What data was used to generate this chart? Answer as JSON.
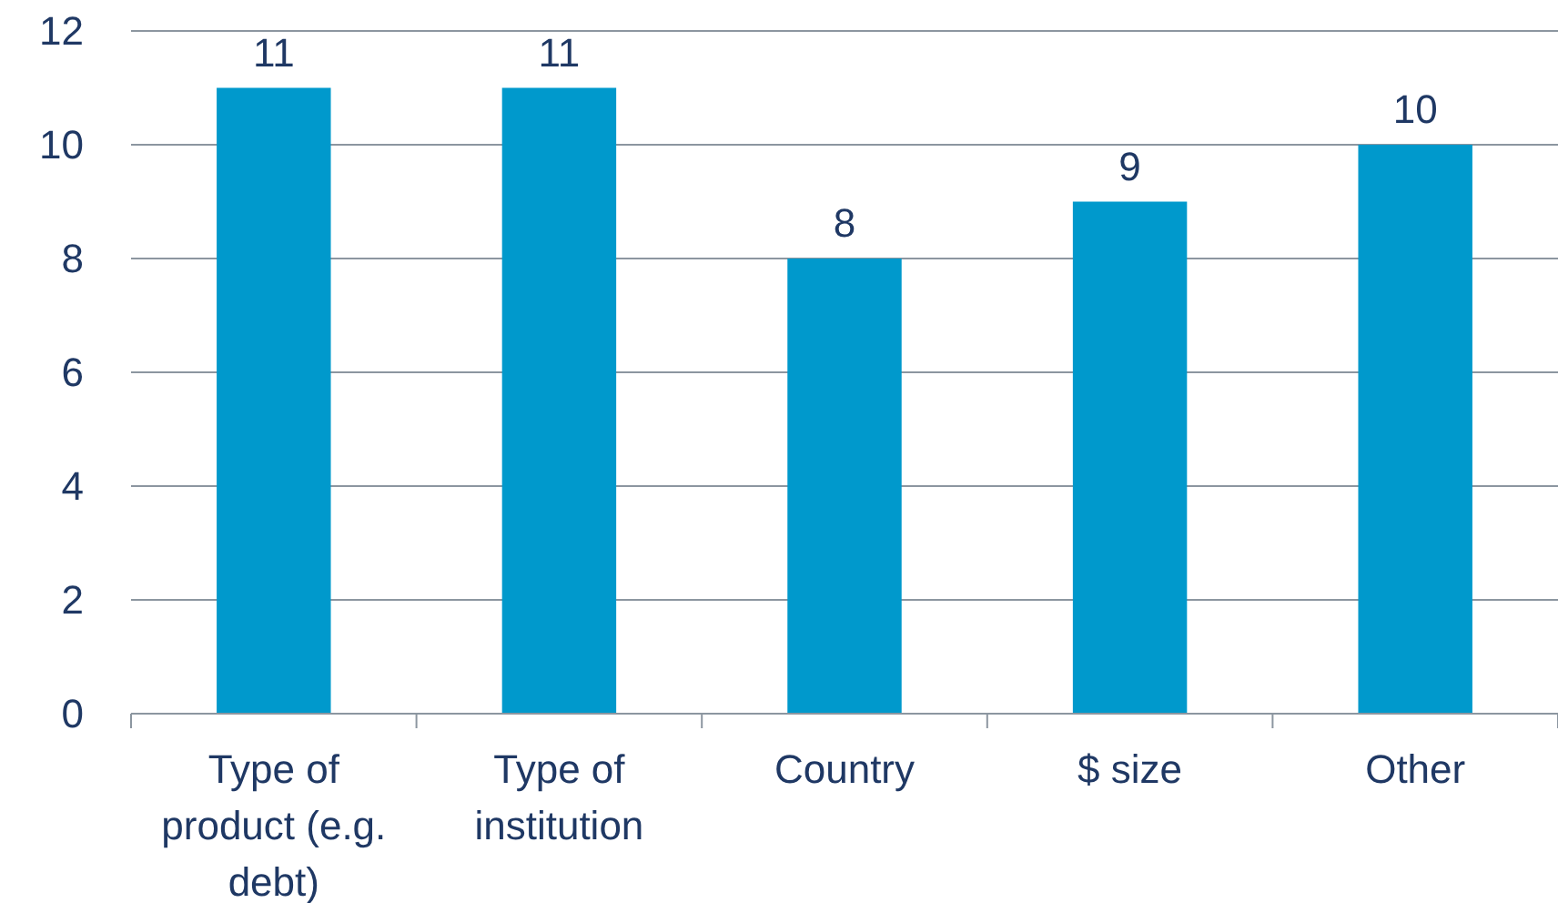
{
  "chart_data": {
    "type": "bar",
    "categories": [
      "Type of product (e.g. debt)",
      "Type of institution",
      "Country",
      "$ size",
      "Other"
    ],
    "values": [
      11,
      11,
      8,
      9,
      10
    ],
    "color": "#0099cc",
    "ylim": [
      0,
      12
    ],
    "yticks": [
      0,
      2,
      4,
      6,
      8,
      10,
      12
    ],
    "grid": "y",
    "data_labels": true
  }
}
